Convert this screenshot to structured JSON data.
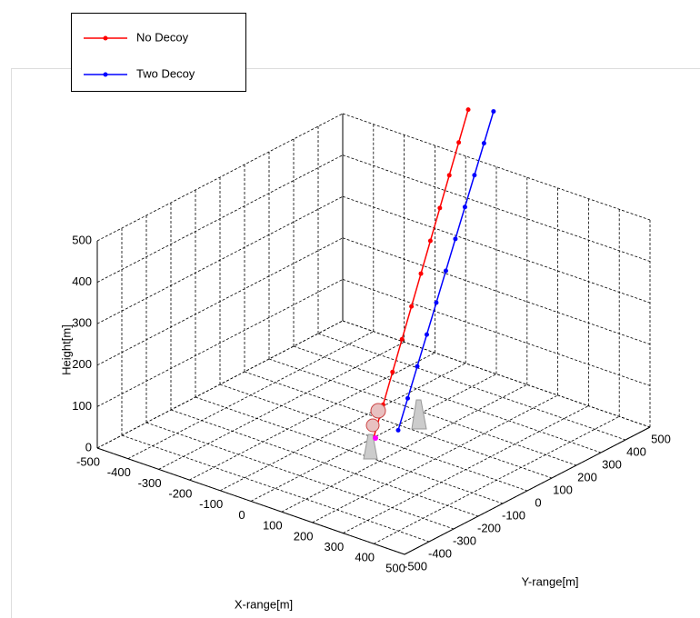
{
  "chart_data": {
    "type": "line3d",
    "xlabel": "X-range[m]",
    "ylabel": "Y-range[m]",
    "zlabel": "Height[m]",
    "xlim": [
      -500,
      500
    ],
    "ylim": [
      -500,
      500
    ],
    "zlim": [
      0,
      500
    ],
    "xticks": [
      -500,
      -400,
      -300,
      -200,
      -100,
      0,
      100,
      200,
      300,
      400,
      500
    ],
    "yticks": [
      -500,
      -400,
      -300,
      -200,
      -100,
      0,
      100,
      200,
      300,
      400,
      500
    ],
    "zticks": [
      0,
      100,
      200,
      300,
      400,
      500
    ],
    "grid": true,
    "series": [
      {
        "name": "No Decoy",
        "color": "#ff0000",
        "x": [
          0,
          -11.4,
          -22.8,
          -34.2,
          -45.6,
          -57,
          -68.4,
          -79.8,
          -91.2,
          -102.6,
          -114
        ],
        "y": [
          0,
          52.8,
          105.6,
          158.4,
          211.2,
          264,
          316.8,
          369.6,
          422.4,
          475.2,
          528
        ],
        "z": [
          0,
          60,
          120,
          180,
          240,
          300,
          360,
          420,
          480,
          540,
          600
        ]
      },
      {
        "name": "Two Decoy",
        "color": "#0000ff",
        "x": [
          20,
          12.2,
          4.4,
          -3.4,
          -11.2,
          -19,
          -26.8,
          -34.6,
          -42.4,
          -50.2,
          -58
        ],
        "y": [
          75,
          123.6,
          172.2,
          220.8,
          269.4,
          318,
          366.6,
          415.2,
          463.8,
          512.4,
          561
        ],
        "z": [
          0,
          60,
          120,
          180,
          240,
          300,
          360,
          420,
          480,
          540,
          600
        ]
      }
    ]
  }
}
